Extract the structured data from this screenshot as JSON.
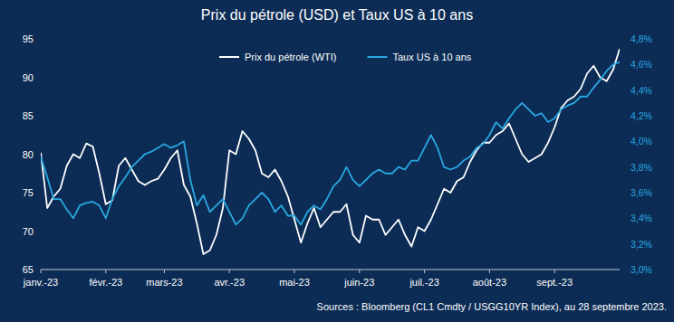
{
  "chart_data": {
    "type": "line",
    "title": "Prix du pétrole (USD) et Taux US à 10 ans",
    "source": "Sources : Bloomberg (CL1 Cmdty / USGG10YR Index), au 28 septembre 2023.",
    "legend": "top",
    "grid": false,
    "categories": [
      "janv.-23",
      null,
      null,
      null,
      null,
      null,
      null,
      null,
      null,
      null,
      "févr.-23",
      null,
      null,
      null,
      null,
      null,
      null,
      null,
      null,
      "mars-23",
      null,
      null,
      null,
      null,
      null,
      null,
      null,
      null,
      null,
      "avr.-23",
      null,
      null,
      null,
      null,
      null,
      null,
      null,
      null,
      null,
      "mai-23",
      null,
      null,
      null,
      null,
      null,
      null,
      null,
      null,
      null,
      "juin-23",
      null,
      null,
      null,
      null,
      null,
      null,
      null,
      null,
      null,
      "juil.-23",
      null,
      null,
      null,
      null,
      null,
      null,
      null,
      null,
      null,
      "août-23",
      null,
      null,
      null,
      null,
      null,
      null,
      null,
      null,
      null,
      "sept.-23",
      null,
      null,
      null,
      null,
      null,
      null,
      null,
      null,
      null,
      null
    ],
    "ylim": [
      65,
      95
    ],
    "yticks": [
      65,
      70,
      75,
      80,
      85,
      90,
      95
    ],
    "y2lim": [
      3.0,
      4.8
    ],
    "y2ticks": [
      {
        "value": 3.0,
        "label": "3,0%"
      },
      {
        "value": 3.2,
        "label": "3,2%"
      },
      {
        "value": 3.4,
        "label": "3,4%"
      },
      {
        "value": 3.6,
        "label": "3,6%"
      },
      {
        "value": 3.8,
        "label": "3,8%"
      },
      {
        "value": 4.0,
        "label": "4,0%"
      },
      {
        "value": 4.2,
        "label": "4,2%"
      },
      {
        "value": 4.4,
        "label": "4,4%"
      },
      {
        "value": 4.6,
        "label": "4,6%"
      },
      {
        "value": 4.8,
        "label": "4,8%"
      }
    ],
    "series": [
      {
        "name": "Prix du pétrole (WTI)",
        "color": "#ffffff",
        "axis": "y",
        "values": [
          80.2,
          73.0,
          74.5,
          75.5,
          78.5,
          80.0,
          79.5,
          81.4,
          81.0,
          77.5,
          73.5,
          74.0,
          78.5,
          79.5,
          78.0,
          76.5,
          76.0,
          76.5,
          76.8,
          78.0,
          79.5,
          80.5,
          76.0,
          74.5,
          71.0,
          67.0,
          67.5,
          69.5,
          73.0,
          80.5,
          80.0,
          83.0,
          82.0,
          80.5,
          77.5,
          77.0,
          78.0,
          76.5,
          74.5,
          71.5,
          68.5,
          71.0,
          73.0,
          70.5,
          71.5,
          72.5,
          72.5,
          73.5,
          69.5,
          68.5,
          72.0,
          71.5,
          71.5,
          69.5,
          70.5,
          71.5,
          69.5,
          68.0,
          70.5,
          70.0,
          71.5,
          73.5,
          75.5,
          75.0,
          76.5,
          77.0,
          79.0,
          80.5,
          81.5,
          81.5,
          82.5,
          83.0,
          84.0,
          82.0,
          80.0,
          79.0,
          79.5,
          80.0,
          81.5,
          83.5,
          86.0,
          87.0,
          87.5,
          88.5,
          90.5,
          91.5,
          90.0,
          89.5,
          91.0,
          93.7
        ]
      },
      {
        "name": "Taux US à 10 ans",
        "color": "#29a8e0",
        "axis": "y2",
        "values": [
          3.88,
          3.72,
          3.55,
          3.55,
          3.47,
          3.4,
          3.5,
          3.52,
          3.53,
          3.5,
          3.4,
          3.55,
          3.65,
          3.72,
          3.8,
          3.85,
          3.9,
          3.92,
          3.95,
          3.98,
          3.95,
          3.97,
          4.0,
          3.7,
          3.5,
          3.58,
          3.45,
          3.5,
          3.55,
          3.45,
          3.35,
          3.4,
          3.5,
          3.55,
          3.6,
          3.55,
          3.45,
          3.5,
          3.42,
          3.42,
          3.35,
          3.45,
          3.5,
          3.47,
          3.55,
          3.65,
          3.7,
          3.8,
          3.7,
          3.65,
          3.7,
          3.75,
          3.78,
          3.75,
          3.75,
          3.8,
          3.78,
          3.85,
          3.85,
          3.95,
          4.05,
          3.95,
          3.8,
          3.78,
          3.8,
          3.85,
          3.88,
          3.95,
          3.98,
          4.05,
          4.15,
          4.1,
          4.18,
          4.25,
          4.3,
          4.25,
          4.2,
          4.22,
          4.15,
          4.18,
          4.25,
          4.28,
          4.3,
          4.35,
          4.35,
          4.42,
          4.48,
          4.55,
          4.6,
          4.62
        ]
      }
    ]
  }
}
